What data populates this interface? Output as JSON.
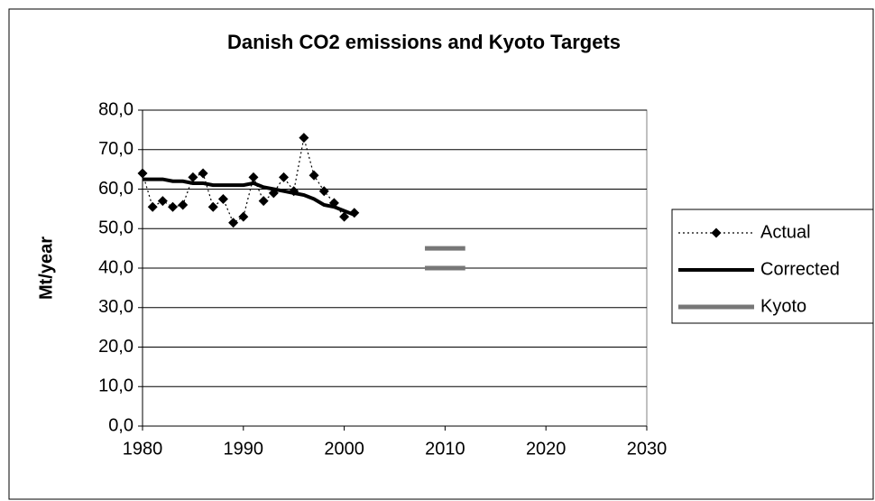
{
  "chart_data": {
    "type": "line",
    "title": "Danish CO2 emissions and Kyoto Targets",
    "ylabel": "Mt/year",
    "xlim": [
      1980,
      2030
    ],
    "xticks": [
      1980,
      1990,
      2000,
      2010,
      2020,
      2030
    ],
    "ylim": [
      0,
      80
    ],
    "yticks": [
      {
        "value": 0,
        "label": "0,0"
      },
      {
        "value": 10,
        "label": "10,0"
      },
      {
        "value": 20,
        "label": "20,0"
      },
      {
        "value": 30,
        "label": "30,0"
      },
      {
        "value": 40,
        "label": "40,0"
      },
      {
        "value": 50,
        "label": "50,0"
      },
      {
        "value": 60,
        "label": "60,0"
      },
      {
        "value": 70,
        "label": "70,0"
      },
      {
        "value": 80,
        "label": "80,0"
      }
    ],
    "grid": true,
    "legend": "right",
    "series": [
      {
        "name": "Actual",
        "color": "#000000",
        "style": "dotted",
        "marker": "diamond",
        "x": [
          1980,
          1981,
          1982,
          1983,
          1984,
          1985,
          1986,
          1987,
          1988,
          1989,
          1990,
          1991,
          1992,
          1993,
          1994,
          1995,
          1996,
          1997,
          1998,
          1999,
          2000,
          2001
        ],
        "values": [
          64,
          55.5,
          57,
          55.5,
          56,
          63,
          64,
          55.5,
          57.5,
          51.5,
          53,
          63,
          57,
          59,
          63,
          59.5,
          73,
          63.5,
          59.5,
          56.5,
          53,
          54
        ]
      },
      {
        "name": "Corrected",
        "color": "#000000",
        "style": "thick",
        "x": [
          1980,
          1981,
          1982,
          1983,
          1984,
          1985,
          1986,
          1987,
          1988,
          1989,
          1990,
          1991,
          1992,
          1993,
          1994,
          1995,
          1996,
          1997,
          1998,
          1999,
          2000,
          2001
        ],
        "values": [
          62.5,
          62.5,
          62.5,
          62,
          62,
          61.5,
          61.5,
          61,
          61,
          61,
          61,
          61.5,
          60.5,
          60,
          59.5,
          59,
          58.5,
          57.5,
          56,
          55.5,
          54.5,
          53.5
        ]
      },
      {
        "name": "Kyoto",
        "color": "#777777",
        "style": "band",
        "x": [
          2008,
          2012,
          null,
          2008,
          2012
        ],
        "values": [
          45,
          45,
          null,
          40,
          40
        ]
      }
    ]
  }
}
